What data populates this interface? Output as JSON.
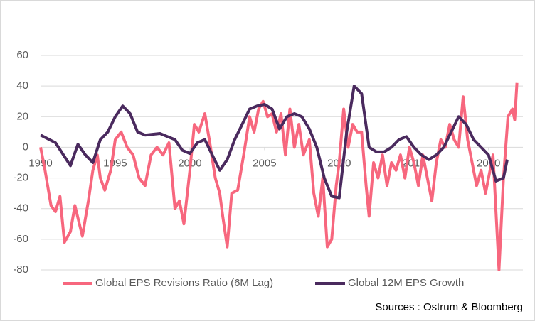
{
  "chart_data": {
    "type": "line",
    "footnote": "Sources : Ostrum & Bloomberg",
    "xlim": [
      1990,
      2022.3
    ],
    "xticks": [
      1990,
      1995,
      2000,
      2005,
      2010,
      2015,
      2020
    ],
    "ylim": [
      -80,
      60
    ],
    "yticks": [
      -80,
      -60,
      -40,
      -20,
      0,
      20,
      40,
      60
    ],
    "grid": true,
    "legend": "bottom",
    "series": [
      {
        "name": "Global EPS Revisions Ratio (6M Lag)",
        "color": "#f7677e",
        "x": [
          1990,
          1990.3,
          1990.7,
          1991,
          1991.3,
          1991.6,
          1992,
          1992.3,
          1992.6,
          1992.8,
          1993.2,
          1993.5,
          1993.8,
          1994,
          1994.3,
          1994.7,
          1995,
          1995.4,
          1995.8,
          1996.2,
          1996.6,
          1997,
          1997.4,
          1997.8,
          1998.2,
          1998.6,
          1999,
          1999.3,
          1999.6,
          2000,
          2000.3,
          2000.6,
          2001,
          2001.3,
          2001.7,
          2002,
          2002.2,
          2002.5,
          2002.8,
          2003.2,
          2003.6,
          2004,
          2004.3,
          2004.6,
          2004.9,
          2005.2,
          2005.5,
          2005.8,
          2006.1,
          2006.4,
          2006.7,
          2007,
          2007.3,
          2007.6,
          2008,
          2008.3,
          2008.6,
          2008.9,
          2009.2,
          2009.5,
          2009.8,
          2010,
          2010.3,
          2010.6,
          2010.9,
          2011.2,
          2011.5,
          2011.8,
          2012,
          2012.3,
          2012.6,
          2012.9,
          2013.2,
          2013.5,
          2013.8,
          2014.1,
          2014.4,
          2014.7,
          2015,
          2015.3,
          2015.6,
          2015.9,
          2016.2,
          2016.5,
          2016.8,
          2017.1,
          2017.4,
          2017.7,
          2018,
          2018.3,
          2018.6,
          2018.9,
          2019.2,
          2019.5,
          2019.8,
          2020,
          2020.3,
          2020.7,
          2021,
          2021.3,
          2021.6,
          2021.75,
          2021.9
        ],
        "values": [
          0,
          -15,
          -38,
          -42,
          -32,
          -62,
          -55,
          -38,
          -50,
          -58,
          -35,
          -15,
          -5,
          -20,
          -28,
          -15,
          5,
          10,
          0,
          -5,
          -20,
          -25,
          -5,
          0,
          -5,
          3,
          -40,
          -35,
          -50,
          -15,
          15,
          10,
          22,
          5,
          -20,
          -30,
          -45,
          -65,
          -30,
          -28,
          -5,
          20,
          10,
          25,
          30,
          20,
          22,
          10,
          22,
          -5,
          25,
          0,
          15,
          -5,
          5,
          -30,
          -45,
          -20,
          -65,
          -60,
          -25,
          -10,
          25,
          0,
          15,
          10,
          10,
          -25,
          -45,
          -10,
          -20,
          -5,
          -25,
          -10,
          -15,
          -5,
          -20,
          0,
          -10,
          -25,
          -5,
          -20,
          -35,
          -10,
          5,
          0,
          15,
          5,
          0,
          33,
          5,
          -10,
          -25,
          -15,
          -30,
          -20,
          -5,
          -80,
          -20,
          20,
          25,
          18,
          42
        ]
      },
      {
        "name": "Global 12M EPS Growth",
        "color": "#4a2a5e",
        "x": [
          1990,
          1991,
          1992,
          1992.5,
          1993,
          1993.5,
          1994,
          1994.5,
          1995,
          1995.5,
          1996,
          1996.5,
          1997,
          1998,
          1998.5,
          1999,
          1999.5,
          2000,
          2000.5,
          2001,
          2001.5,
          2002,
          2002.5,
          2003,
          2003.5,
          2004,
          2004.5,
          2005,
          2005.5,
          2006,
          2006.5,
          2007,
          2007.5,
          2008,
          2008.5,
          2009,
          2009.5,
          2010,
          2010.5,
          2011,
          2011.5,
          2012,
          2012.5,
          2013,
          2013.5,
          2014,
          2014.5,
          2015,
          2015.5,
          2016,
          2016.5,
          2017,
          2017.5,
          2018,
          2018.5,
          2019,
          2019.5,
          2020,
          2020.5,
          2021,
          2021.25
        ],
        "values": [
          8,
          3,
          -12,
          2,
          -5,
          -10,
          5,
          10,
          20,
          27,
          22,
          10,
          8,
          9,
          7,
          5,
          -2,
          -4,
          3,
          5,
          -5,
          -15,
          -8,
          5,
          15,
          25,
          27,
          28,
          25,
          12,
          20,
          22,
          20,
          12,
          0,
          -20,
          -32,
          -33,
          10,
          40,
          35,
          0,
          -3,
          -3,
          0,
          5,
          7,
          0,
          -5,
          -8,
          -5,
          0,
          10,
          20,
          15,
          5,
          0,
          -5,
          -22,
          -20,
          -8
        ]
      }
    ]
  }
}
